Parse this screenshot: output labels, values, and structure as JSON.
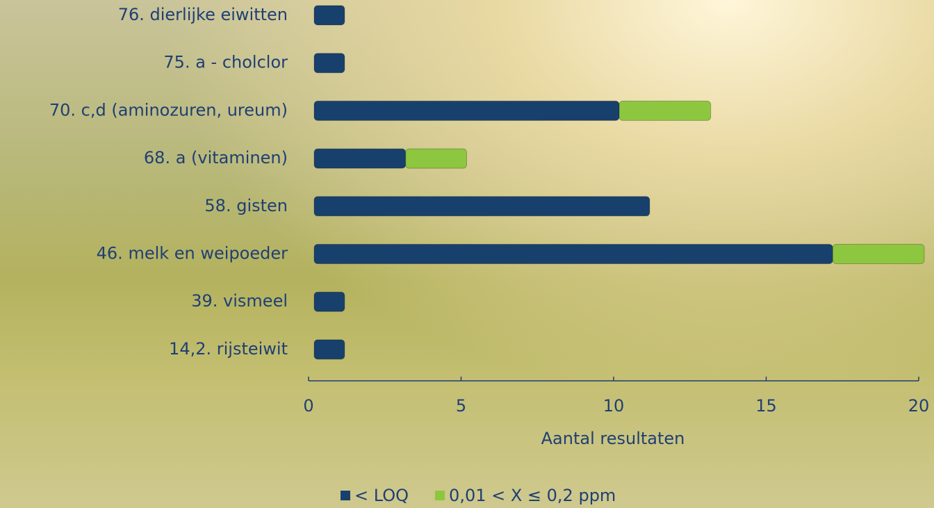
{
  "chart_data": {
    "type": "stacked-barh",
    "categories": [
      "76. dierlijke eiwitten",
      "75. a - cholclor",
      "70. c,d (aminozuren, ureum)",
      "68. a (vitaminen)",
      "58. gisten",
      "46. melk en weipoeder",
      "39. vismeel",
      "14,2. rijsteiwit"
    ],
    "series": [
      {
        "name": "< LOQ",
        "color": "#17406d",
        "values": [
          1,
          1,
          10,
          3,
          11,
          17,
          1,
          1
        ]
      },
      {
        "name": "0,01 < X ≤ 0,2 ppm",
        "color": "#8dc63f",
        "values": [
          0,
          0,
          3,
          2,
          0,
          3,
          0,
          0
        ]
      }
    ],
    "xlabel": "Aantal resultaten",
    "xlim": [
      0,
      20
    ],
    "xticks": [
      0,
      5,
      10,
      15,
      20
    ],
    "legend": "bottom"
  }
}
